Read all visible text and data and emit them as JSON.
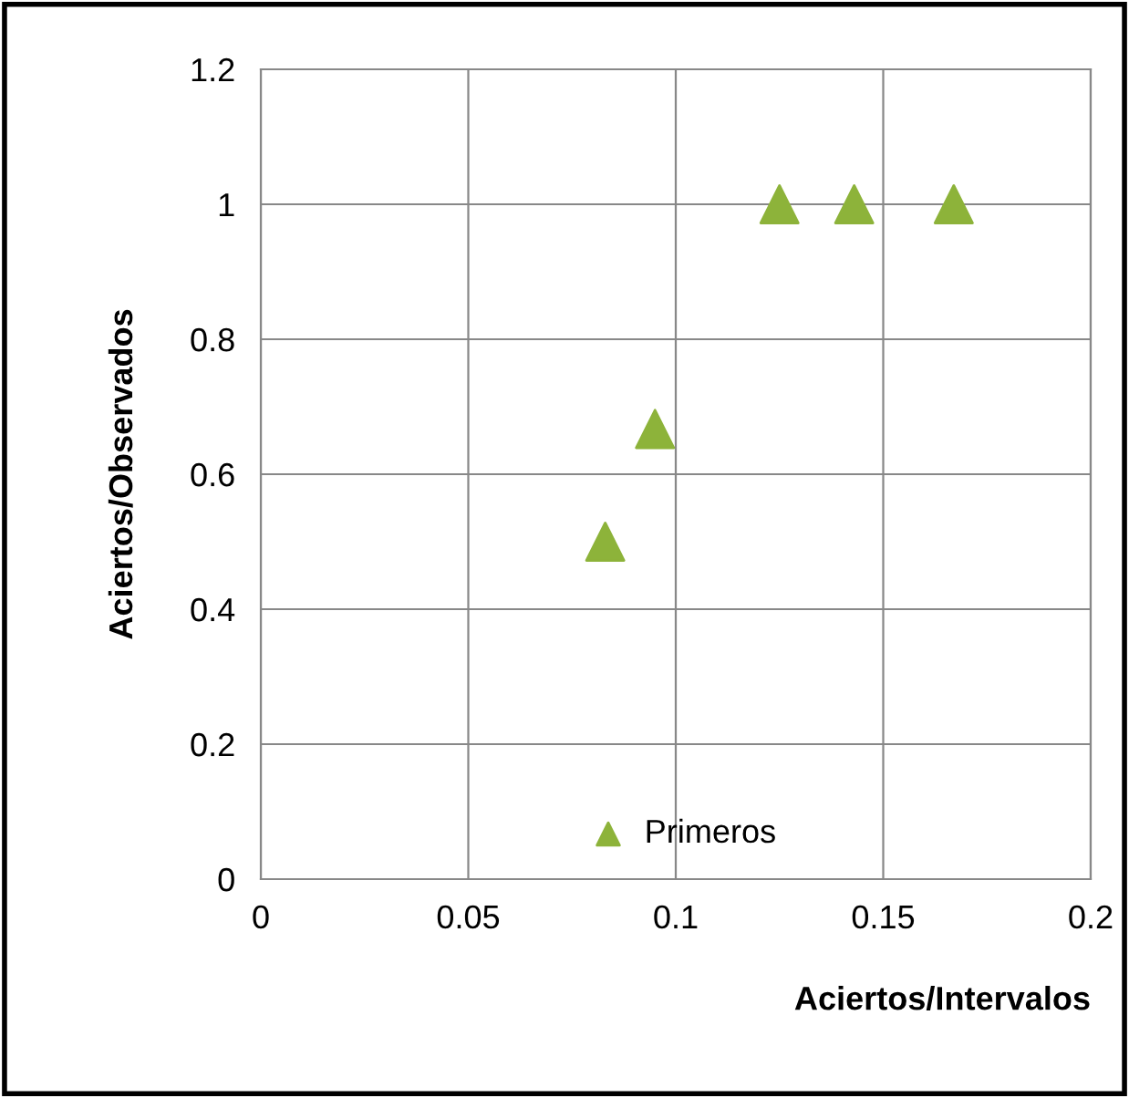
{
  "chart_data": {
    "type": "scatter",
    "xlabel": "Aciertos/Intervalos",
    "ylabel": "Aciertos/Observados",
    "series": [
      {
        "name": "Primeros",
        "color": "#8db33a",
        "x": [
          0.083,
          0.095,
          0.125,
          0.143,
          0.167
        ],
        "values": [
          0.5,
          0.667,
          1,
          1,
          1
        ]
      }
    ],
    "xlim": [
      0,
      0.2
    ],
    "xticks": [
      0,
      0.05,
      0.1,
      0.15,
      0.2
    ],
    "ylim": [
      0,
      1.2
    ],
    "yticks": [
      0,
      0.2,
      0.4,
      0.6,
      0.8,
      1,
      1.2
    ],
    "grid": true,
    "legend": "bottom",
    "marker": "triangle"
  }
}
